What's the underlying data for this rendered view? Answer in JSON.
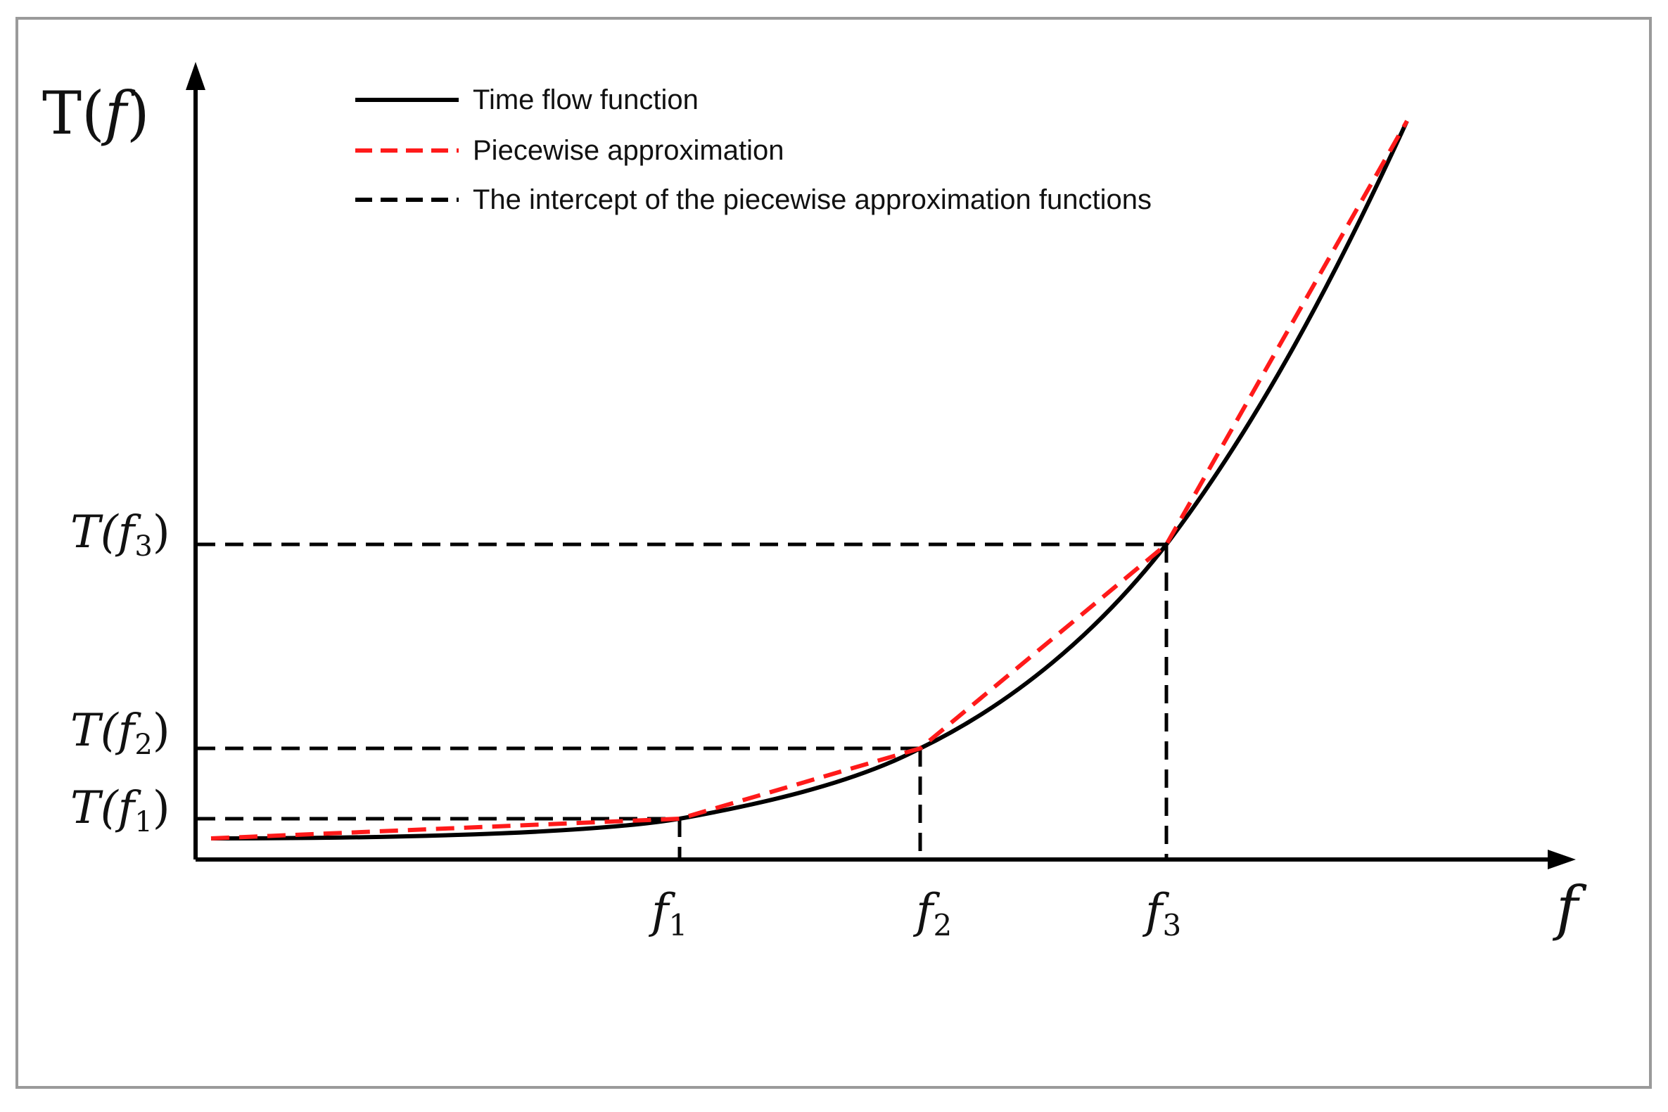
{
  "axes": {
    "y_label_main": "T(",
    "y_label_var": "f",
    "y_label_close": ")",
    "x_label": "f"
  },
  "legend": {
    "items": [
      {
        "key": "time-flow",
        "label": "Time flow function",
        "color": "#000000",
        "style": "solid"
      },
      {
        "key": "piecewise",
        "label": "Piecewise approximation",
        "color": "#ff1a1a",
        "style": "dashed"
      },
      {
        "key": "intercept",
        "label": "The intercept of the piecewise approximation functions",
        "color": "#000000",
        "style": "dashed"
      }
    ]
  },
  "breakpoints": [
    {
      "x_label_base": "f",
      "x_label_sub": "1",
      "y_label_pre": "T(",
      "y_label_base": "f",
      "y_label_sub": "1",
      "y_label_post": ")"
    },
    {
      "x_label_base": "f",
      "x_label_sub": "2",
      "y_label_pre": "T(",
      "y_label_base": "f",
      "y_label_sub": "2",
      "y_label_post": ")"
    },
    {
      "x_label_base": "f",
      "x_label_sub": "3",
      "y_label_pre": "T(",
      "y_label_base": "f",
      "y_label_sub": "3",
      "y_label_post": ")"
    }
  ]
}
